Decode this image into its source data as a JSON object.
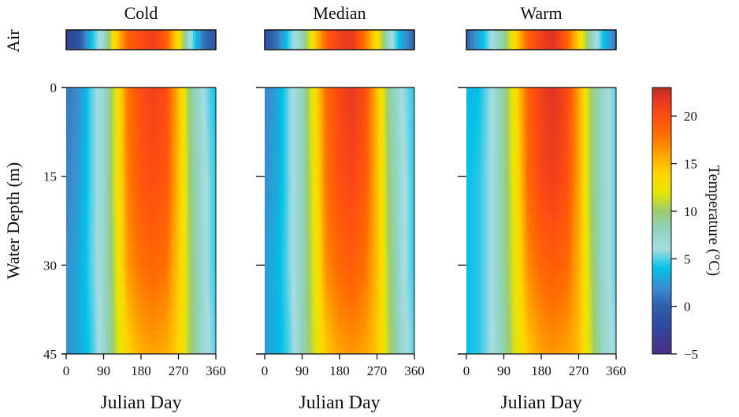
{
  "chart_data": {
    "type": "heatmap",
    "ylabel": "Water Depth (m)",
    "air_label": "Air",
    "xlabel": "Julian Day",
    "x_ticks": [
      0,
      90,
      180,
      270,
      360
    ],
    "y_ticks": [
      0,
      15,
      30,
      45
    ],
    "xlim": [
      0,
      360
    ],
    "ylim": [
      45,
      0
    ],
    "colorbar": {
      "label": "Temperature (°C)",
      "range": [
        -5,
        23
      ],
      "ticks": [
        -5,
        0,
        5,
        10,
        15,
        20
      ],
      "colormap": [
        [
          -5,
          "#4a2f86"
        ],
        [
          -2,
          "#2e4a9e"
        ],
        [
          0,
          "#2f5ea9"
        ],
        [
          2,
          "#3a8ecf"
        ],
        [
          4,
          "#00c2e8"
        ],
        [
          6,
          "#a6dde2"
        ],
        [
          8,
          "#8fd3bf"
        ],
        [
          10,
          "#9ccc70"
        ],
        [
          12,
          "#e8e600"
        ],
        [
          14,
          "#ffd400"
        ],
        [
          16,
          "#ffa200"
        ],
        [
          18,
          "#ff6e00"
        ],
        [
          20,
          "#ff4c12"
        ],
        [
          22,
          "#e03424"
        ],
        [
          23,
          "#b23228"
        ]
      ]
    },
    "days": [
      0,
      30,
      60,
      90,
      120,
      150,
      180,
      210,
      240,
      270,
      300,
      330,
      360
    ],
    "depths": [
      0,
      15,
      30,
      45
    ],
    "panels": [
      {
        "title": "Cold",
        "air": [
          -3,
          -1,
          4,
          7,
          14,
          19,
          20,
          21,
          19,
          13,
          6,
          1,
          -1
        ],
        "water": [
          [
            1,
            2,
            5,
            7,
            12,
            18,
            20,
            21,
            20,
            15,
            9,
            6,
            4
          ],
          [
            1.5,
            2.5,
            5,
            7,
            12,
            17.5,
            19.5,
            20,
            19.5,
            15,
            9.5,
            6.5,
            4.5
          ],
          [
            2,
            3,
            5,
            7,
            11.5,
            16.5,
            18,
            18.5,
            18,
            14.5,
            10,
            6.5,
            4.5
          ],
          [
            2,
            3,
            4.5,
            7,
            11,
            14,
            15.5,
            16,
            15.5,
            14,
            10,
            7,
            5
          ]
        ]
      },
      {
        "title": "Median",
        "air": [
          -1,
          1,
          5,
          8,
          14,
          19,
          21,
          21.5,
          18,
          13,
          7,
          3,
          0
        ],
        "water": [
          [
            1.5,
            3,
            5.5,
            8,
            13,
            18.5,
            20.5,
            21.5,
            20,
            15,
            9,
            6,
            4.5
          ],
          [
            2,
            3,
            5.5,
            8,
            12.5,
            18,
            20,
            20.5,
            19.5,
            15,
            9.5,
            6.5,
            4.5
          ],
          [
            2.5,
            3.5,
            5.5,
            8,
            12,
            17,
            18.5,
            19,
            18,
            15,
            10,
            6.5,
            4.5
          ],
          [
            2.5,
            3.5,
            5,
            8,
            11.5,
            14.5,
            16,
            16.5,
            16,
            14.5,
            10.5,
            7,
            5
          ]
        ]
      },
      {
        "title": "Warm",
        "air": [
          0,
          3,
          6,
          9,
          14,
          19,
          21,
          22,
          19,
          14,
          8,
          4,
          1
        ],
        "water": [
          [
            3.5,
            4,
            6,
            9,
            13.5,
            19,
            21,
            22,
            20.5,
            16,
            10,
            7,
            5
          ],
          [
            4,
            4.5,
            6,
            9,
            13,
            18.5,
            20.5,
            21,
            20,
            16,
            10,
            7,
            5
          ],
          [
            4,
            4.5,
            6,
            9,
            12.5,
            17,
            18.5,
            19,
            18.5,
            15.5,
            10.5,
            7,
            5
          ],
          [
            4,
            4.5,
            6,
            8.5,
            12,
            14.5,
            16,
            16.5,
            16,
            15,
            11,
            7.5,
            5.5
          ]
        ]
      }
    ]
  }
}
